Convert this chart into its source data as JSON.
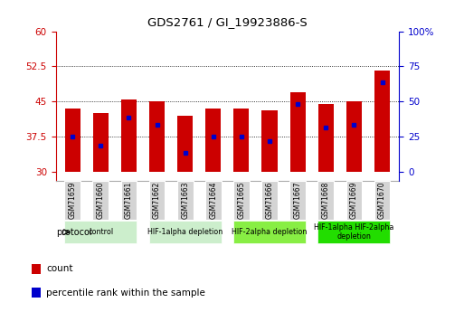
{
  "title": "GDS2761 / GI_19923886-S",
  "samples": [
    "GSM71659",
    "GSM71660",
    "GSM71661",
    "GSM71662",
    "GSM71663",
    "GSM71664",
    "GSM71665",
    "GSM71666",
    "GSM71667",
    "GSM71668",
    "GSM71669",
    "GSM71670"
  ],
  "bar_tops": [
    43.5,
    42.5,
    45.5,
    45.0,
    42.0,
    43.5,
    43.5,
    43.0,
    47.0,
    44.5,
    45.0,
    51.5
  ],
  "bar_bottoms": [
    30,
    30,
    30,
    30,
    30,
    30,
    30,
    30,
    30,
    30,
    30,
    30
  ],
  "blue_dot_vals": [
    37.5,
    35.5,
    41.5,
    40.0,
    34.0,
    37.5,
    37.5,
    36.5,
    44.5,
    39.5,
    40.0,
    49.0
  ],
  "ylim": [
    28,
    60
  ],
  "yticks_left": [
    30,
    37.5,
    45,
    52.5,
    60
  ],
  "yticks_right": [
    0,
    25,
    50,
    75,
    100
  ],
  "bar_color": "#cc0000",
  "dot_color": "#0000cc",
  "bar_width": 0.55,
  "group_starts": [
    0,
    3,
    6,
    9
  ],
  "group_ends": [
    2,
    5,
    8,
    11
  ],
  "group_labels": [
    "control",
    "HIF-1alpha depletion",
    "HIF-2alpha depletion",
    "HIF-1alpha HIF-2alpha\ndepletion"
  ],
  "group_colors": [
    "#cceecc",
    "#cceecc",
    "#88ee44",
    "#22dd00"
  ],
  "sample_box_color": "#d4d4d4",
  "protocol_label": "protocol",
  "legend_count_label": "count",
  "legend_percentile_label": "percentile rank within the sample",
  "left_axis_color": "#cc0000",
  "right_axis_color": "#0000cc"
}
